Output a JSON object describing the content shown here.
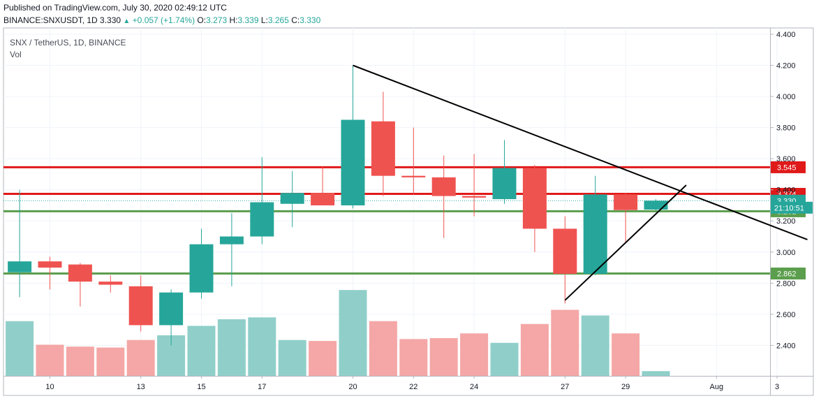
{
  "header": {
    "published": "Published on TradingView.com, July 30, 2020 02:49:12 UTC",
    "symbol": "BINANCE:SNXUSDT, 1D",
    "last": "3.330",
    "change": "+0.057 (+1.74%)",
    "o_label": "O:",
    "o_value": "3.273",
    "h_label": "H:",
    "h_value": "3.339",
    "l_label": "L:",
    "l_value": "3.265",
    "c_label": "C:",
    "c_value": "3.330"
  },
  "chart_data": {
    "type": "candlestick",
    "title": "SNX / TetherUS, 1D, BINANCE",
    "volume_label": "Vol",
    "ylim": [
      2.2,
      4.4
    ],
    "y_ticks": [
      "4.400",
      "4.200",
      "4.000",
      "3.800",
      "3.600",
      "3.400",
      "3.200",
      "3.000",
      "2.800",
      "2.600",
      "2.400"
    ],
    "x_ticks": [
      {
        "label": "10",
        "day": 10
      },
      {
        "label": "13",
        "day": 13
      },
      {
        "label": "15",
        "day": 15
      },
      {
        "label": "17",
        "day": 17
      },
      {
        "label": "20",
        "day": 20
      },
      {
        "label": "22",
        "day": 22
      },
      {
        "label": "24",
        "day": 24
      },
      {
        "label": "27",
        "day": 27
      },
      {
        "label": "29",
        "day": 29
      },
      {
        "label": "Aug",
        "day": 32
      },
      {
        "label": "3",
        "day": 34
      }
    ],
    "candles": [
      {
        "day": 9,
        "o": 2.87,
        "h": 3.4,
        "l": 2.71,
        "c": 2.94
      },
      {
        "day": 10,
        "o": 2.94,
        "h": 2.97,
        "l": 2.76,
        "c": 2.9
      },
      {
        "day": 11,
        "o": 2.92,
        "h": 2.93,
        "l": 2.65,
        "c": 2.81
      },
      {
        "day": 12,
        "o": 2.81,
        "h": 2.85,
        "l": 2.74,
        "c": 2.79
      },
      {
        "day": 13,
        "o": 2.78,
        "h": 2.85,
        "l": 2.49,
        "c": 2.53
      },
      {
        "day": 14,
        "o": 2.53,
        "h": 2.76,
        "l": 2.4,
        "c": 2.74
      },
      {
        "day": 15,
        "o": 2.74,
        "h": 3.15,
        "l": 2.7,
        "c": 3.05
      },
      {
        "day": 16,
        "o": 3.05,
        "h": 3.25,
        "l": 2.78,
        "c": 3.1
      },
      {
        "day": 17,
        "o": 3.1,
        "h": 3.61,
        "l": 3.05,
        "c": 3.32
      },
      {
        "day": 18,
        "o": 3.31,
        "h": 3.52,
        "l": 3.16,
        "c": 3.38
      },
      {
        "day": 19,
        "o": 3.38,
        "h": 3.55,
        "l": 3.31,
        "c": 3.3
      },
      {
        "day": 20,
        "o": 3.3,
        "h": 4.2,
        "l": 3.28,
        "c": 3.85
      },
      {
        "day": 21,
        "o": 3.84,
        "h": 4.03,
        "l": 3.36,
        "c": 3.49
      },
      {
        "day": 22,
        "o": 3.49,
        "h": 3.8,
        "l": 3.37,
        "c": 3.48
      },
      {
        "day": 23,
        "o": 3.48,
        "h": 3.62,
        "l": 3.09,
        "c": 3.36
      },
      {
        "day": 24,
        "o": 3.36,
        "h": 3.63,
        "l": 3.23,
        "c": 3.35
      },
      {
        "day": 25,
        "o": 3.34,
        "h": 3.72,
        "l": 3.31,
        "c": 3.54
      },
      {
        "day": 26,
        "o": 3.54,
        "h": 3.56,
        "l": 3.0,
        "c": 3.15
      },
      {
        "day": 27,
        "o": 3.15,
        "h": 3.23,
        "l": 2.67,
        "c": 2.86
      },
      {
        "day": 28,
        "o": 2.86,
        "h": 3.49,
        "l": 2.85,
        "c": 3.37
      },
      {
        "day": 29,
        "o": 3.37,
        "h": 3.38,
        "l": 3.06,
        "c": 3.27
      },
      {
        "day": 30,
        "o": 3.273,
        "h": 3.339,
        "l": 3.265,
        "c": 3.33
      }
    ],
    "volume": [
      0.58,
      0.33,
      0.31,
      0.3,
      0.38,
      0.43,
      0.53,
      0.6,
      0.62,
      0.38,
      0.37,
      0.91,
      0.58,
      0.39,
      0.4,
      0.45,
      0.35,
      0.55,
      0.7,
      0.64,
      0.45,
      0.05
    ],
    "horizontal_levels": [
      {
        "value": 3.545,
        "label": "3.545",
        "color": "#e01919"
      },
      {
        "value": 3.374,
        "label": "3.374",
        "color": "#e01919"
      },
      {
        "value": 3.262,
        "label": "3.262",
        "color": "#5b9e4d"
      },
      {
        "value": 2.862,
        "label": "2.862",
        "color": "#5b9e4d"
      }
    ],
    "price_label": {
      "value": 3.33,
      "label": "3.330",
      "color": "#26a69a"
    },
    "countdown": {
      "value": 3.285,
      "label": "21:10:51",
      "color": "#26a69a"
    },
    "trendlines": [
      {
        "from": {
          "day": 20,
          "price": 4.2
        },
        "to": {
          "day": 35,
          "price": 3.08
        }
      },
      {
        "from": {
          "day": 27,
          "price": 2.69
        },
        "to": {
          "day": 31,
          "price": 3.43
        }
      }
    ],
    "colors": {
      "up": "#26a69a",
      "down": "#ef5350",
      "up_vol": "#90cfc9",
      "down_vol": "#f4a7a6"
    }
  }
}
